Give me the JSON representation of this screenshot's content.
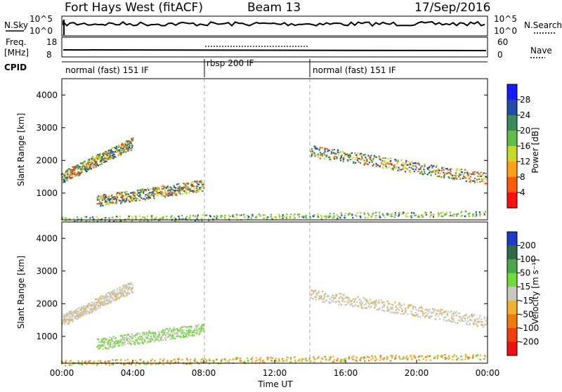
{
  "header": {
    "station": "Fort Hays West (fitACF)",
    "beam": "Beam 13",
    "date": "17/Sep/2016"
  },
  "panels": {
    "noise": {
      "left_label": "N.Sky",
      "right_label": "N.Search",
      "left_ticks": [
        "10^5",
        "10^0"
      ],
      "right_ticks": [
        "10^5",
        "10^0"
      ]
    },
    "freq": {
      "left_label_1": "Freq.",
      "left_label_2": "[MHz]",
      "left_ticks": [
        "18",
        "8"
      ],
      "right_label": "Nave",
      "right_ticks": [
        "60",
        "0"
      ]
    },
    "cpid": {
      "label": "CPID",
      "segments": [
        "normal (fast) 151 IF",
        "rbsp 200 IF",
        "normal (fast) 151 IF"
      ]
    }
  },
  "chart_data": [
    {
      "type": "heatmap",
      "name": "power",
      "ylabel": "Slant Range [km]",
      "ylim": [
        180,
        4500
      ],
      "yticks": [
        "1000",
        "2000",
        "3000",
        "4000"
      ],
      "colorbar_label": "Power [dB]",
      "colorbar_ticks": [
        "4",
        "8",
        "12",
        "16",
        "20",
        "24",
        "28"
      ],
      "colorbar_colors": [
        "#1a1aff",
        "#1f4ea8",
        "#3a8a5a",
        "#5fbe4a",
        "#c7d82a",
        "#ff9f1a",
        "#ff5a0a",
        "#ff1010"
      ],
      "echo_regions": [
        {
          "name": "early band",
          "x_start_h": 0.0,
          "x_end_h": 4.0,
          "r_start_km": 1500,
          "r_end_km": 2550
        },
        {
          "name": "mid band",
          "x_start_h": 2.0,
          "x_end_h": 8.0,
          "r_start_km": 780,
          "r_end_km": 1250
        },
        {
          "name": "late band",
          "x_start_h": 14.0,
          "x_end_h": 24.0,
          "r_start_km": 2300,
          "r_end_km": 1450
        },
        {
          "name": "ground scatter",
          "x_start_h": 0.0,
          "x_end_h": 24.0,
          "r_start_km": 200,
          "r_end_km": 400
        }
      ]
    },
    {
      "type": "heatmap",
      "name": "velocity",
      "ylabel": "Slant Range [km]",
      "ylim": [
        180,
        4500
      ],
      "yticks": [
        "1000",
        "2000",
        "3000",
        "4000"
      ],
      "colorbar_label": "Velocity [m s⁻¹]",
      "colorbar_ticks": [
        "200",
        "100",
        "50",
        "15",
        "-15",
        "-50",
        "-100",
        "-200"
      ],
      "colorbar_colors": [
        "#1a3cc8",
        "#2f6b4a",
        "#4aa84a",
        "#6fdc3a",
        "#c8c8c0",
        "#f0b030",
        "#f07a10",
        "#f04010",
        "#f01010"
      ]
    }
  ],
  "x_axis": {
    "label": "Time UT",
    "ticks": [
      "00:00",
      "04:00",
      "08:00",
      "12:00",
      "16:00",
      "20:00",
      "00:00"
    ],
    "range_h": [
      0,
      24
    ]
  }
}
